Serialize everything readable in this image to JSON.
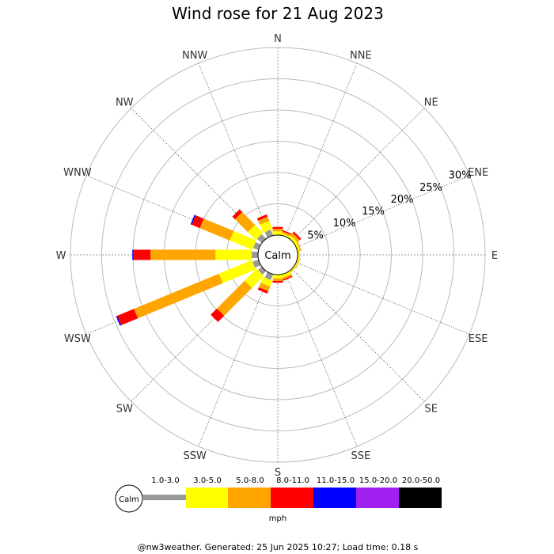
{
  "chart_data": {
    "type": "wind-rose",
    "title": "Wind rose for 21 Aug 2023",
    "directions": [
      "N",
      "NNE",
      "NE",
      "ENE",
      "E",
      "ESE",
      "SE",
      "SSE",
      "S",
      "SSW",
      "SW",
      "WSW",
      "W",
      "WNW",
      "NW",
      "NNW"
    ],
    "radial_ticks": [
      5,
      10,
      15,
      20,
      25,
      30
    ],
    "radial_tick_labels": [
      "5%",
      "10%",
      "15%",
      "20%",
      "25%",
      "30%"
    ],
    "radial_max": 30,
    "calm_label": "Calm",
    "speed_unit": "mph",
    "speed_bins": [
      {
        "label": "1.0-3.0",
        "color": "#999999"
      },
      {
        "label": "3.0-5.0",
        "color": "#ffff00"
      },
      {
        "label": "5.0-8.0",
        "color": "#ffa500"
      },
      {
        "label": "8.0-11.0",
        "color": "#ff0000"
      },
      {
        "label": "11.0-15.0",
        "color": "#0000ff"
      },
      {
        "label": "15.0-20.0",
        "color": "#a020f0"
      },
      {
        "label": "20.0-50.0",
        "color": "#000000"
      }
    ],
    "frequencies": {
      "N": [
        0.0,
        0.6,
        0.4,
        0.3,
        0,
        0,
        0
      ],
      "NNE": [
        0.0,
        0.3,
        0.3,
        0.2,
        0,
        0,
        0
      ],
      "NE": [
        0.0,
        0.5,
        0.5,
        0.3,
        0,
        0,
        0
      ],
      "ENE": [
        0.0,
        0.4,
        0.2,
        0.0,
        0,
        0,
        0
      ],
      "E": [
        0.0,
        0.2,
        0.1,
        0.0,
        0,
        0,
        0
      ],
      "ESE": [
        0.0,
        0.3,
        0.1,
        0.0,
        0,
        0,
        0
      ],
      "SE": [
        0.0,
        0.2,
        0.1,
        0.0,
        0,
        0,
        0
      ],
      "SSE": [
        0.0,
        0.5,
        0.3,
        0.2,
        0,
        0,
        0
      ],
      "S": [
        0.0,
        0.6,
        0.4,
        0.3,
        0,
        0,
        0
      ],
      "SSW": [
        1.0,
        1.0,
        0.8,
        0.4,
        0,
        0,
        0
      ],
      "SW": [
        0.8,
        2.7,
        6.3,
        1.4,
        0,
        0,
        0
      ],
      "WSW": [
        1.0,
        5.7,
        14.7,
        2.9,
        0.2,
        0,
        0
      ],
      "W": [
        1.0,
        5.8,
        10.4,
        2.7,
        0.2,
        0,
        0
      ],
      "WNW": [
        0.9,
        3.9,
        5.2,
        1.4,
        0.2,
        0,
        0
      ],
      "NW": [
        1.0,
        1.8,
        2.9,
        0.6,
        0,
        0,
        0
      ],
      "NNW": [
        1.0,
        1.4,
        0.7,
        0.4,
        0,
        0,
        0
      ]
    }
  },
  "footer": "@nw3weather. Generated: 25 Jun 2025 10:27; Load time: 0.18 s"
}
